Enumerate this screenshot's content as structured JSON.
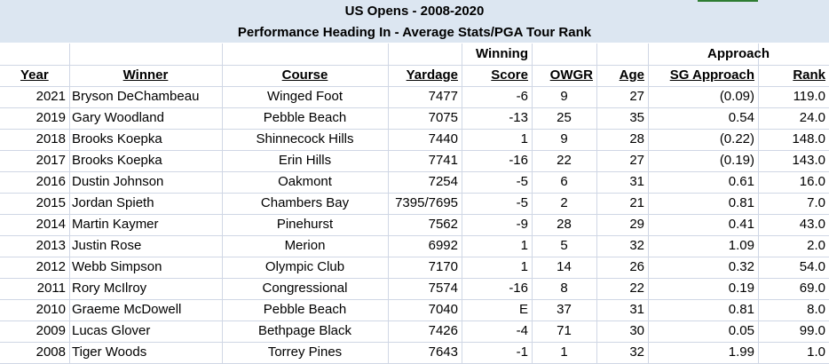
{
  "title": "US Opens - 2008-2020",
  "subtitle": "Performance Heading In - Average Stats/PGA Tour Rank",
  "header_top": {
    "winning": "Winning",
    "approach": "Approach"
  },
  "columns": {
    "year": "Year",
    "winner": "Winner",
    "course": "Course",
    "yardage": "Yardage",
    "score": "Score",
    "owgr": "OWGR",
    "age": "Age",
    "sg": "SG Approach",
    "rank": "Rank"
  },
  "rows": [
    {
      "year": "2021",
      "winner": "Bryson DeChambeau",
      "course": "Winged Foot",
      "yardage": "7477",
      "score": "-6",
      "owgr": "9",
      "age": "27",
      "sg": "(0.09)",
      "rank": "119.0"
    },
    {
      "year": "2019",
      "winner": "Gary Woodland",
      "course": "Pebble Beach",
      "yardage": "7075",
      "score": "-13",
      "owgr": "25",
      "age": "35",
      "sg": "0.54",
      "rank": "24.0"
    },
    {
      "year": "2018",
      "winner": "Brooks Koepka",
      "course": "Shinnecock Hills",
      "yardage": "7440",
      "score": "1",
      "owgr": "9",
      "age": "28",
      "sg": "(0.22)",
      "rank": "148.0"
    },
    {
      "year": "2017",
      "winner": "Brooks Koepka",
      "course": "Erin Hills",
      "yardage": "7741",
      "score": "-16",
      "owgr": "22",
      "age": "27",
      "sg": "(0.19)",
      "rank": "143.0"
    },
    {
      "year": "2016",
      "winner": "Dustin Johnson",
      "course": "Oakmont",
      "yardage": "7254",
      "score": "-5",
      "owgr": "6",
      "age": "31",
      "sg": "0.61",
      "rank": "16.0"
    },
    {
      "year": "2015",
      "winner": "Jordan Spieth",
      "course": "Chambers Bay",
      "yardage": "7395/7695",
      "score": "-5",
      "owgr": "2",
      "age": "21",
      "sg": "0.81",
      "rank": "7.0"
    },
    {
      "year": "2014",
      "winner": "Martin Kaymer",
      "course": "Pinehurst",
      "yardage": "7562",
      "score": "-9",
      "owgr": "28",
      "age": "29",
      "sg": "0.41",
      "rank": "43.0"
    },
    {
      "year": "2013",
      "winner": "Justin Rose",
      "course": "Merion",
      "yardage": "6992",
      "score": "1",
      "owgr": "5",
      "age": "32",
      "sg": "1.09",
      "rank": "2.0"
    },
    {
      "year": "2012",
      "winner": "Webb Simpson",
      "course": "Olympic Club",
      "yardage": "7170",
      "score": "1",
      "owgr": "14",
      "age": "26",
      "sg": "0.32",
      "rank": "54.0"
    },
    {
      "year": "2011",
      "winner": "Rory McIlroy",
      "course": "Congressional",
      "yardage": "7574",
      "score": "-16",
      "owgr": "8",
      "age": "22",
      "sg": "0.19",
      "rank": "69.0"
    },
    {
      "year": "2010",
      "winner": "Graeme McDowell",
      "course": "Pebble Beach",
      "yardage": "7040",
      "score": "E",
      "owgr": "37",
      "age": "31",
      "sg": "0.81",
      "rank": "8.0"
    },
    {
      "year": "2009",
      "winner": "Lucas Glover",
      "course": "Bethpage Black",
      "yardage": "7426",
      "score": "-4",
      "owgr": "71",
      "age": "30",
      "sg": "0.05",
      "rank": "99.0"
    },
    {
      "year": "2008",
      "winner": "Tiger Woods",
      "course": "Torrey Pines",
      "yardage": "7643",
      "score": "-1",
      "owgr": "1",
      "age": "32",
      "sg": "1.99",
      "rank": "1.0"
    }
  ]
}
